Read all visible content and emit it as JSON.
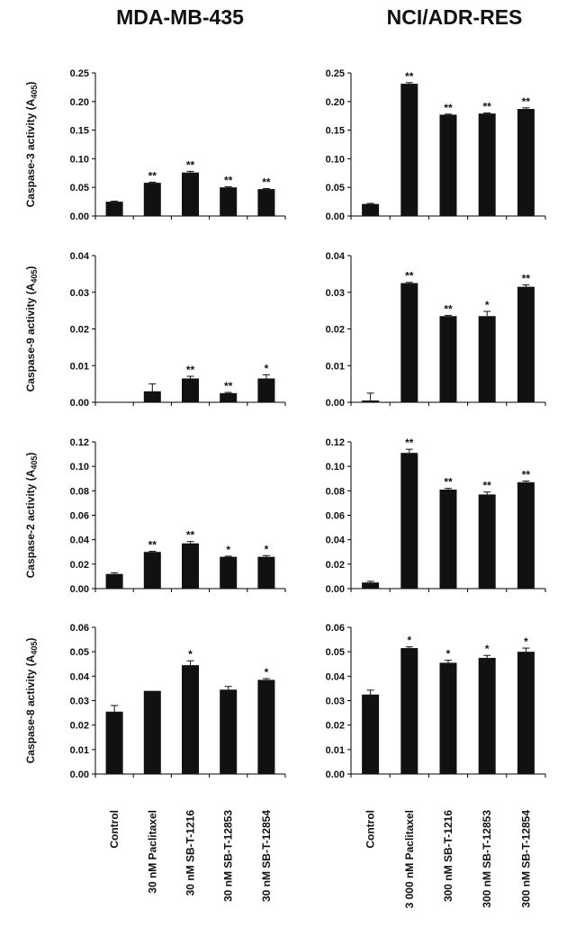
{
  "columns": [
    {
      "title": "MDA-MB-435",
      "categories": [
        "Control",
        "30 nM Paclitaxel",
        "30 nM SB-T-1216",
        "30 nM SB-T-12853",
        "30 nM SB-T-12854"
      ]
    },
    {
      "title": "NCI/ADR-RES",
      "categories": [
        "Control",
        "3 000 nM Paclitaxel",
        "300 nM SB-T-1216",
        "300 nM SB-T-12853",
        "300 nM SB-T-12854"
      ]
    }
  ],
  "chart_data": [
    {
      "type": "bar",
      "row": 0,
      "col": 0,
      "ylabel_main": "Caspase-3 activity (A",
      "ylabel_sub": "405",
      "ylabel_end": ")",
      "ylim": [
        0,
        0.25
      ],
      "ticks": [
        "0.00",
        "0.05",
        "0.10",
        "0.15",
        "0.20",
        "0.25"
      ],
      "values": [
        0.025,
        0.058,
        0.076,
        0.05,
        0.047
      ],
      "errors": [
        0.001,
        0.001,
        0.002,
        0.001,
        0.001
      ],
      "marks": [
        "",
        "**",
        "**",
        "**",
        "**"
      ]
    },
    {
      "type": "bar",
      "row": 0,
      "col": 1,
      "ylabel_main": "",
      "ylabel_sub": "",
      "ylabel_end": "",
      "ylim": [
        0,
        0.25
      ],
      "ticks": [
        "0.00",
        "0.05",
        "0.10",
        "0.15",
        "0.20",
        "0.25"
      ],
      "values": [
        0.021,
        0.231,
        0.177,
        0.179,
        0.187
      ],
      "errors": [
        0.001,
        0.002,
        0.001,
        0.001,
        0.002
      ],
      "marks": [
        "",
        "**",
        "**",
        "**",
        "**"
      ]
    },
    {
      "type": "bar",
      "row": 1,
      "col": 0,
      "ylabel_main": "Caspase-9 activity (A",
      "ylabel_sub": "405",
      "ylabel_end": ")",
      "ylim": [
        0,
        0.04
      ],
      "ticks": [
        "0.00",
        "0.01",
        "0.02",
        "0.03",
        "0.04"
      ],
      "values": [
        0.0,
        0.003,
        0.0065,
        0.0025,
        0.0065
      ],
      "errors": [
        0,
        0.002,
        0.0006,
        0.0002,
        0.001
      ],
      "marks": [
        "",
        "",
        "**",
        "**",
        "*"
      ]
    },
    {
      "type": "bar",
      "row": 1,
      "col": 1,
      "ylabel_main": "",
      "ylabel_sub": "",
      "ylabel_end": "",
      "ylim": [
        0,
        0.04
      ],
      "ticks": [
        "0.00",
        "0.01",
        "0.02",
        "0.03",
        "0.04"
      ],
      "values": [
        0.0005,
        0.0325,
        0.0235,
        0.0235,
        0.0315
      ],
      "errors": [
        0.002,
        0.0002,
        0.0002,
        0.0013,
        0.0005
      ],
      "marks": [
        "",
        "**",
        "**",
        "*",
        "**"
      ]
    },
    {
      "type": "bar",
      "row": 2,
      "col": 0,
      "ylabel_main": "Caspase-2 activity (A",
      "ylabel_sub": "405",
      "ylabel_end": ")",
      "ylim": [
        0,
        0.12
      ],
      "ticks": [
        "0.00",
        "0.02",
        "0.04",
        "0.06",
        "0.08",
        "0.10",
        "0.12"
      ],
      "values": [
        0.012,
        0.03,
        0.037,
        0.026,
        0.026
      ],
      "errors": [
        0.001,
        0.0005,
        0.0015,
        0.0005,
        0.001
      ],
      "marks": [
        "",
        "**",
        "**",
        "*",
        "*"
      ]
    },
    {
      "type": "bar",
      "row": 2,
      "col": 1,
      "ylabel_main": "",
      "ylabel_sub": "",
      "ylabel_end": "",
      "ylim": [
        0,
        0.12
      ],
      "ticks": [
        "0.00",
        "0.02",
        "0.04",
        "0.06",
        "0.08",
        "0.10",
        "0.12"
      ],
      "values": [
        0.005,
        0.111,
        0.081,
        0.077,
        0.087
      ],
      "errors": [
        0.001,
        0.003,
        0.001,
        0.002,
        0.001
      ],
      "marks": [
        "",
        "**",
        "**",
        "**",
        "**"
      ]
    },
    {
      "type": "bar",
      "row": 3,
      "col": 0,
      "ylabel_main": "Caspase-8 activity (A",
      "ylabel_sub": "405",
      "ylabel_end": ")",
      "ylim": [
        0,
        0.06
      ],
      "ticks": [
        "0.00",
        "0.01",
        "0.02",
        "0.03",
        "0.04",
        "0.05",
        "0.06"
      ],
      "values": [
        0.0255,
        0.034,
        0.0445,
        0.0345,
        0.0385
      ],
      "errors": [
        0.0025,
        0.0,
        0.0018,
        0.0013,
        0.0005
      ],
      "marks": [
        "",
        "",
        "*",
        "",
        "*"
      ]
    },
    {
      "type": "bar",
      "row": 3,
      "col": 1,
      "ylabel_main": "",
      "ylabel_sub": "",
      "ylabel_end": "",
      "ylim": [
        0,
        0.06
      ],
      "ticks": [
        "0.00",
        "0.01",
        "0.02",
        "0.03",
        "0.04",
        "0.05",
        "0.06"
      ],
      "values": [
        0.0325,
        0.0515,
        0.0455,
        0.0475,
        0.05
      ],
      "errors": [
        0.0018,
        0.0005,
        0.001,
        0.001,
        0.0015
      ],
      "marks": [
        "",
        "*",
        "*",
        "*",
        "*"
      ]
    }
  ]
}
